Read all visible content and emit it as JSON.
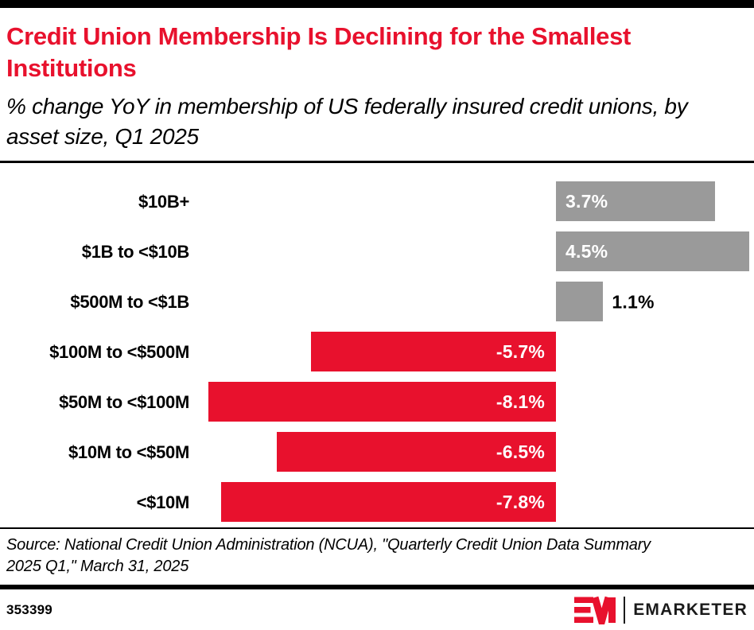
{
  "header": {
    "title": "Credit Union Membership Is Declining for the Smallest Institutions",
    "subtitle": "% change YoY in membership of US federally insured credit unions, by asset size, Q1 2025"
  },
  "chart_data": {
    "type": "bar",
    "orientation": "horizontal",
    "title": "Credit Union Membership Is Declining for the Smallest Institutions",
    "subtitle": "% change YoY in membership of US federally insured credit unions, by asset size, Q1 2025",
    "categories": [
      "$10B+",
      "$1B to <$10B",
      "$500M to <$1B",
      "$100M to <$500M",
      "$50M to <$100M",
      "$10M to <$50M",
      "<$10M"
    ],
    "values": [
      3.7,
      4.5,
      1.1,
      -5.7,
      -8.1,
      -6.5,
      -7.8
    ],
    "value_labels": [
      "3.7%",
      "4.5%",
      "1.1%",
      "-5.7%",
      "-8.1%",
      "-6.5%",
      "-7.8%"
    ],
    "xlim": [
      -8.35,
      4.61
    ],
    "grid": false,
    "legend": "none",
    "positive_color": "#9a9a9a",
    "negative_color": "#e8112d"
  },
  "colors": {
    "accent_red": "#e8112d",
    "bar_gray": "#9a9a9a",
    "rule_black": "#000000"
  },
  "source": {
    "text": "Source: National Credit Union Administration (NCUA), \"Quarterly Credit Union Data Summary 2025 Q1,\" March 31, 2025"
  },
  "footer": {
    "chart_id": "353399",
    "brand": "EMARKETER",
    "logo": "emarketer-em-mark"
  }
}
